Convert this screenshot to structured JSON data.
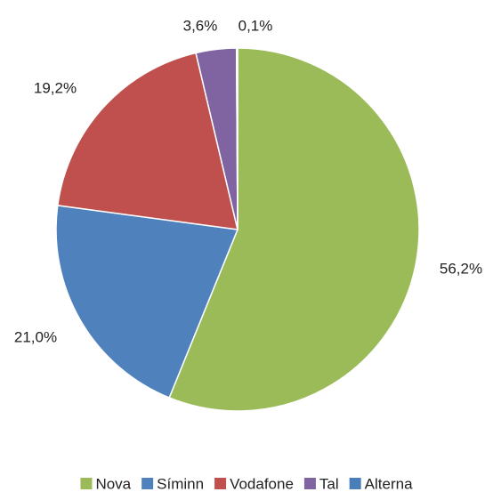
{
  "chart_data": {
    "type": "pie",
    "categories": [
      "Nova",
      "Síminn",
      "Vodafone",
      "Tal",
      "Alterna"
    ],
    "values": [
      56.2,
      21.0,
      19.2,
      3.6,
      0.1
    ],
    "value_labels": [
      "56,2%",
      "21,0%",
      "19,2%",
      "3,6%",
      "0,1%"
    ],
    "colors": [
      "#9bbb59",
      "#4f81bd",
      "#c0504d",
      "#8064a2",
      "#4a7ebb"
    ],
    "legend": "bottom"
  }
}
